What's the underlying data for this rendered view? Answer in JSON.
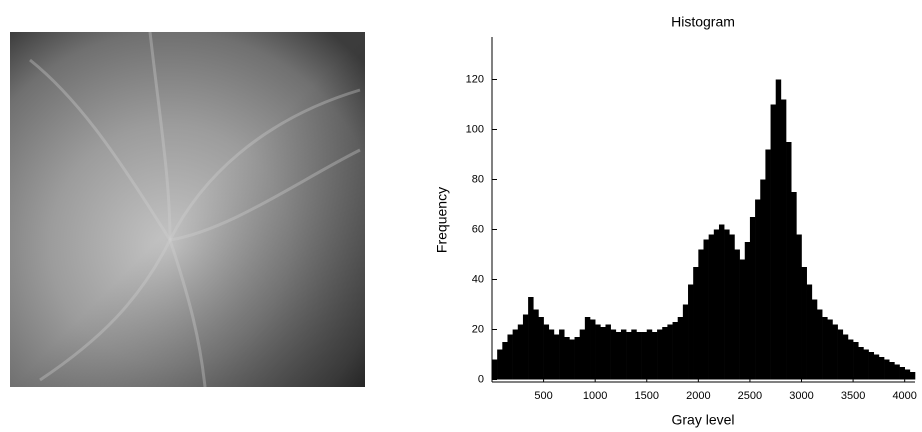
{
  "chart_data": {
    "type": "histogram",
    "title": "Histogram",
    "x_label": "Gray level",
    "y_label": "Frequency",
    "bins": [
      0,
      50,
      100,
      150,
      200,
      250,
      300,
      350,
      400,
      450,
      500,
      550,
      600,
      650,
      700,
      750,
      800,
      850,
      900,
      950,
      1000,
      1050,
      1100,
      1150,
      1200,
      1250,
      1300,
      1350,
      1400,
      1450,
      1500,
      1550,
      1600,
      1650,
      1700,
      1750,
      1800,
      1850,
      1900,
      1950,
      2000,
      2050,
      2100,
      2150,
      2200,
      2250,
      2300,
      2350,
      2400,
      2450,
      2500,
      2550,
      2600,
      2650,
      2700,
      2750,
      2800,
      2850,
      2900,
      2950,
      3000,
      3050,
      3100,
      3150,
      3200,
      3250,
      3300,
      3350,
      3400,
      3450,
      3500,
      3550,
      3600,
      3650,
      3700,
      3750,
      3800,
      3850,
      3900,
      3950,
      4000,
      4050,
      4100
    ],
    "values": [
      8,
      12,
      15,
      18,
      20,
      22,
      26,
      33,
      28,
      25,
      22,
      20,
      18,
      20,
      17,
      16,
      17,
      20,
      25,
      24,
      22,
      21,
      22,
      20,
      19,
      20,
      19,
      20,
      19,
      19,
      20,
      19,
      20,
      21,
      22,
      23,
      25,
      30,
      38,
      45,
      52,
      56,
      58,
      60,
      62,
      60,
      58,
      52,
      48,
      55,
      65,
      72,
      80,
      92,
      110,
      120,
      112,
      95,
      75,
      58,
      45,
      38,
      32,
      28,
      25,
      24,
      22,
      20,
      18,
      16,
      15,
      13,
      12,
      11,
      10,
      9,
      8,
      7,
      6,
      5,
      4,
      3
    ],
    "color": "#000000",
    "xlim": [
      0,
      4100
    ],
    "ylim": [
      -1,
      137
    ],
    "xticks": [
      500,
      1000,
      1500,
      2000,
      2500,
      3000,
      3500,
      4000
    ],
    "yticks": [
      0,
      20,
      40,
      60,
      80,
      100,
      120
    ]
  }
}
